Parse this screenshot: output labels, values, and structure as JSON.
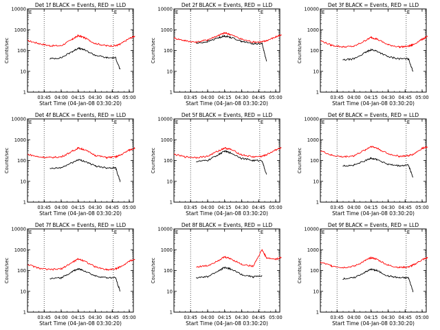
{
  "colors": {
    "events": "#000000",
    "lld": "#ff0000",
    "frame": "#000000",
    "background": "#ffffff"
  },
  "common": {
    "ylabel": "Counts/sec",
    "xlabel": "Start Time (04-Jan-08 03:30:20)",
    "x_tick_labels": [
      "03:45",
      "04:00",
      "04:15",
      "04:30",
      "04:45",
      "05:00"
    ],
    "y_tick_labels": [
      "1",
      "10",
      "100",
      "1000",
      "10000"
    ],
    "marker_label": "E"
  },
  "chart_data": [
    {
      "type": "line",
      "title": "Det 1f BLACK = Events, RED = LLD",
      "ylim": [
        1,
        10000
      ],
      "y_scale": "log",
      "x": [
        "03:30:20",
        "03:40",
        "03:50",
        "04:00",
        "04:10",
        "04:15",
        "04:20",
        "04:30",
        "04:40",
        "04:48",
        "04:52",
        "05:00",
        "05:05"
      ],
      "series": [
        {
          "name": "LLD",
          "values": [
            300,
            220,
            170,
            170,
            350,
            520,
            430,
            220,
            170,
            170,
            200,
            380,
            500
          ]
        },
        {
          "name": "Events",
          "values": [
            null,
            null,
            40,
            45,
            90,
            130,
            110,
            60,
            45,
            45,
            12,
            null,
            null
          ]
        }
      ]
    },
    {
      "type": "line",
      "title": "Det 2f BLACK = Events, RED = LLD",
      "ylim": [
        1,
        10000
      ],
      "y_scale": "log",
      "x": [
        "03:30:20",
        "03:40",
        "03:50",
        "04:00",
        "04:10",
        "04:15",
        "04:20",
        "04:30",
        "04:40",
        "04:48",
        "04:52",
        "05:00",
        "05:05"
      ],
      "series": [
        {
          "name": "LLD",
          "values": [
            400,
            300,
            250,
            330,
            550,
            700,
            600,
            350,
            260,
            260,
            300,
            450,
            550
          ]
        },
        {
          "name": "Events",
          "values": [
            null,
            null,
            220,
            270,
            420,
            500,
            440,
            280,
            210,
            220,
            30,
            null,
            null
          ]
        }
      ]
    },
    {
      "type": "line",
      "title": "Det 3f BLACK = Events, RED = LLD",
      "ylim": [
        1,
        10000
      ],
      "y_scale": "log",
      "x": [
        "03:30:20",
        "03:40",
        "03:50",
        "04:00",
        "04:10",
        "04:15",
        "04:20",
        "04:30",
        "04:40",
        "04:48",
        "04:52",
        "05:00",
        "05:05"
      ],
      "series": [
        {
          "name": "LLD",
          "values": [
            300,
            180,
            150,
            160,
            300,
            430,
            360,
            190,
            150,
            160,
            190,
            350,
            480
          ]
        },
        {
          "name": "Events",
          "values": [
            null,
            null,
            35,
            40,
            80,
            110,
            95,
            50,
            40,
            40,
            10,
            null,
            null
          ]
        }
      ]
    },
    {
      "type": "line",
      "title": "Det 4f BLACK = Events, RED = LLD",
      "ylim": [
        1,
        10000
      ],
      "y_scale": "log",
      "x": [
        "03:30:20",
        "03:40",
        "03:50",
        "04:00",
        "04:10",
        "04:15",
        "04:20",
        "04:30",
        "04:40",
        "04:48",
        "04:52",
        "05:00",
        "05:05"
      ],
      "series": [
        {
          "name": "LLD",
          "values": [
            200,
            150,
            140,
            150,
            280,
            400,
            340,
            180,
            140,
            150,
            180,
            320,
            400
          ]
        },
        {
          "name": "Events",
          "values": [
            null,
            null,
            40,
            45,
            80,
            110,
            95,
            55,
            45,
            45,
            10,
            null,
            null
          ]
        }
      ]
    },
    {
      "type": "line",
      "title": "Det 5f BLACK = Events, RED = LLD",
      "ylim": [
        1,
        10000
      ],
      "y_scale": "log",
      "x": [
        "03:30:20",
        "03:40",
        "03:50",
        "04:00",
        "04:10",
        "04:15",
        "04:20",
        "04:30",
        "04:40",
        "04:48",
        "04:52",
        "05:00",
        "05:05"
      ],
      "series": [
        {
          "name": "LLD",
          "values": [
            200,
            150,
            140,
            160,
            300,
            400,
            350,
            190,
            150,
            160,
            190,
            330,
            400
          ]
        },
        {
          "name": "Events",
          "values": [
            null,
            null,
            90,
            100,
            200,
            280,
            240,
            130,
            100,
            100,
            20,
            null,
            null
          ]
        }
      ]
    },
    {
      "type": "line",
      "title": "Det 6f BLACK = Events, RED = LLD",
      "ylim": [
        1,
        10000
      ],
      "y_scale": "log",
      "x": [
        "03:30:20",
        "03:40",
        "03:50",
        "04:00",
        "04:10",
        "04:15",
        "04:20",
        "04:30",
        "04:40",
        "04:48",
        "04:52",
        "05:00",
        "05:05"
      ],
      "series": [
        {
          "name": "LLD",
          "values": [
            300,
            180,
            150,
            170,
            330,
            480,
            400,
            210,
            160,
            170,
            200,
            380,
            480
          ]
        },
        {
          "name": "Events",
          "values": [
            null,
            null,
            55,
            60,
            100,
            130,
            115,
            65,
            55,
            60,
            15,
            null,
            null
          ]
        }
      ]
    },
    {
      "type": "line",
      "title": "Det 7f BLACK = Events, RED = LLD",
      "ylim": [
        1,
        10000
      ],
      "y_scale": "log",
      "x": [
        "03:30:20",
        "03:40",
        "03:50",
        "04:00",
        "04:10",
        "04:15",
        "04:20",
        "04:30",
        "04:40",
        "04:48",
        "04:52",
        "05:00",
        "05:05"
      ],
      "series": [
        {
          "name": "LLD",
          "values": [
            200,
            130,
            110,
            120,
            250,
            360,
            300,
            150,
            110,
            120,
            150,
            280,
            350
          ]
        },
        {
          "name": "Events",
          "values": [
            null,
            null,
            40,
            45,
            90,
            120,
            100,
            55,
            45,
            45,
            10,
            null,
            null
          ]
        }
      ]
    },
    {
      "type": "line",
      "title": "Det 8f BLACK = Events, RED = LLD",
      "ylim": [
        1,
        10000
      ],
      "y_scale": "log",
      "x": [
        "03:30:20",
        "03:40",
        "03:50",
        "04:00",
        "04:10",
        "04:15",
        "04:20",
        "04:30",
        "04:40",
        "04:48",
        "04:52",
        "05:00",
        "05:05"
      ],
      "series": [
        {
          "name": "LLD",
          "values": [
            null,
            null,
            150,
            170,
            320,
            450,
            380,
            200,
            160,
            1000,
            400,
            350,
            420
          ]
        },
        {
          "name": "Events",
          "values": [
            null,
            null,
            45,
            50,
            100,
            140,
            120,
            65,
            50,
            55,
            null,
            null,
            null
          ]
        }
      ]
    },
    {
      "type": "line",
      "title": "Det 9f BLACK = Events, RED = LLD",
      "ylim": [
        1,
        10000
      ],
      "y_scale": "log",
      "x": [
        "03:30:20",
        "03:40",
        "03:50",
        "04:00",
        "04:10",
        "04:15",
        "04:20",
        "04:30",
        "04:40",
        "04:48",
        "04:52",
        "05:00",
        "05:05"
      ],
      "series": [
        {
          "name": "LLD",
          "values": [
            250,
            170,
            140,
            160,
            300,
            420,
            350,
            180,
            140,
            150,
            180,
            330,
            420
          ]
        },
        {
          "name": "Events",
          "values": [
            null,
            null,
            40,
            45,
            85,
            115,
            100,
            55,
            45,
            45,
            10,
            null,
            null
          ]
        }
      ]
    }
  ]
}
